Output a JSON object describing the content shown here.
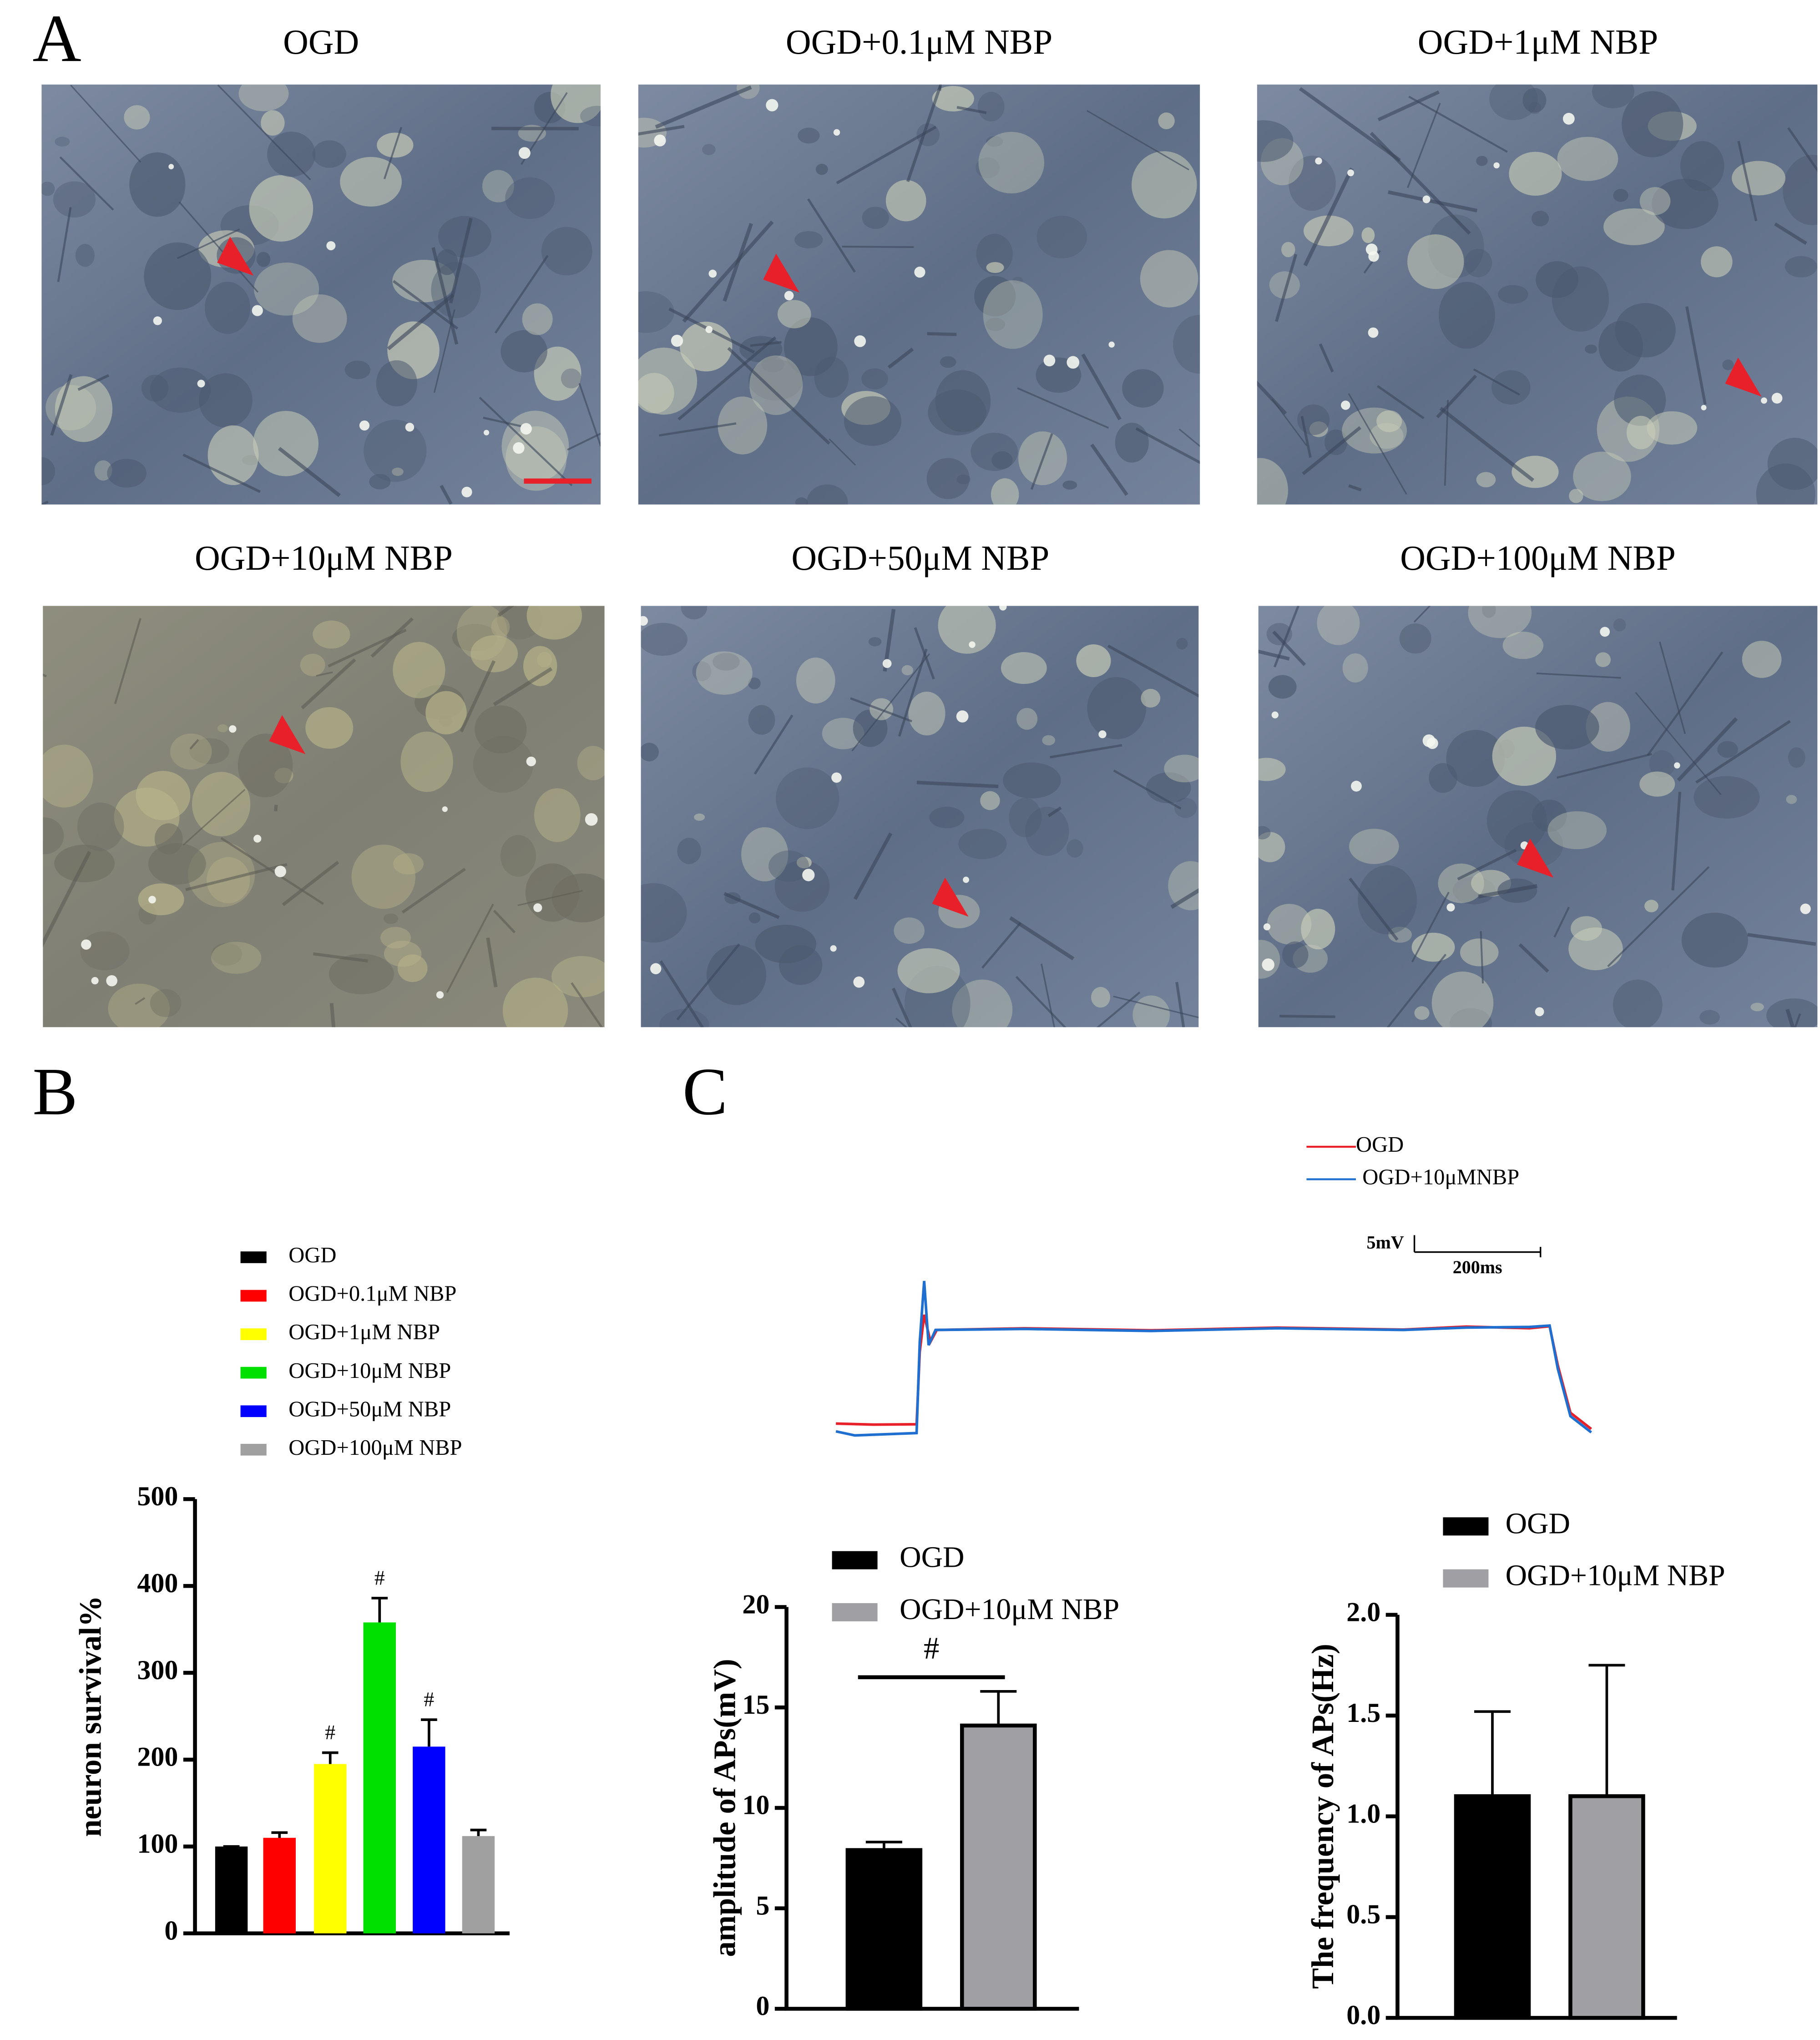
{
  "panel_labels": [
    "A",
    "B",
    "C"
  ],
  "micrographs": {
    "titles": [
      "OGD",
      "OGD+0.1μM NBP",
      "OGD+1μM NBP",
      "OGD+10μM NBP",
      "OGD+50μM NBP",
      "OGD+100μM NBP"
    ]
  },
  "chart_data": [
    {
      "type": "line",
      "series": [
        {
          "name": "OGD",
          "color": "#e8202a",
          "x": [
            0,
            60,
            128,
            133,
            140,
            150,
            160,
            300,
            500,
            700,
            900,
            1000,
            1100,
            1132,
            1145,
            1165,
            1198
          ],
          "values": [
            0.8,
            0.5,
            0.6,
            22,
            33,
            25,
            28.5,
            29,
            28.4,
            29.2,
            28.6,
            29.5,
            29,
            29.6,
            18,
            4,
            -0.8
          ]
        },
        {
          "name": "OGD+10μMNBP",
          "color": "#1f6fd1",
          "x": [
            0,
            30,
            128,
            133,
            140,
            147,
            158,
            300,
            500,
            700,
            900,
            1000,
            1100,
            1132,
            1145,
            1165,
            1198
          ],
          "values": [
            -1.5,
            -2.7,
            -2,
            25,
            43,
            24,
            28.5,
            28.8,
            28.2,
            29,
            28.5,
            29.2,
            29.4,
            29.8,
            17,
            3,
            -1.8
          ]
        }
      ],
      "scalebar": {
        "x": {
          "value": 200,
          "label": "200ms"
        },
        "y": {
          "value": 5,
          "label": "5mV"
        }
      }
    },
    {
      "type": "bar",
      "ylabel": "neuron survival%",
      "categories": [
        "OGD",
        "OGD+0.1μM NBP",
        "OGD+1μM NBP",
        "OGD+10μM NBP",
        "OGD+50μM NBP",
        "OGD+100μM NBP"
      ],
      "values": [
        100,
        110,
        195,
        358,
        215,
        112
      ],
      "errors": [
        0,
        6,
        13,
        28,
        31,
        7
      ],
      "colors": [
        "#000000",
        "#ff0000",
        "#ffff00",
        "#00e000",
        "#0000ff",
        "#a0a0a0"
      ],
      "annotations": [
        {
          "index": 2,
          "text": "#"
        },
        {
          "index": 3,
          "text": "#"
        },
        {
          "index": 4,
          "text": "#"
        }
      ],
      "ylim": [
        0,
        500
      ],
      "yticks": [
        0,
        100,
        200,
        300,
        400,
        500
      ],
      "legend": "top"
    },
    {
      "type": "bar",
      "ylabel": "amplitude of APs(mV)",
      "categories": [
        "OGD",
        "OGD+10μM NBP"
      ],
      "values": [
        7.9,
        14.1
      ],
      "errors": [
        0.4,
        1.7
      ],
      "colors": [
        "#000000",
        "#a0a0a4"
      ],
      "significance": {
        "between": [
          0,
          1
        ],
        "text": "#"
      },
      "ylim": [
        0,
        20
      ],
      "yticks": [
        0,
        5,
        10,
        15,
        20
      ],
      "legend": "top"
    },
    {
      "type": "bar",
      "ylabel": "The frequency of APs(Hz)",
      "categories": [
        "OGD",
        "OGD+10μM NBP"
      ],
      "values": [
        1.1,
        1.1
      ],
      "errors": [
        0.42,
        0.65
      ],
      "colors": [
        "#000000",
        "#a0a0a4"
      ],
      "ylim": [
        0,
        2.0
      ],
      "yticks": [
        {
          "value": 0,
          "label": "0.0"
        },
        {
          "value": 0.5,
          "label": "0.5"
        },
        {
          "value": 1.0,
          "label": "1.0"
        },
        {
          "value": 1.5,
          "label": "1.5"
        },
        {
          "value": 2.0,
          "label": "2.0"
        }
      ],
      "legend": "top"
    }
  ]
}
